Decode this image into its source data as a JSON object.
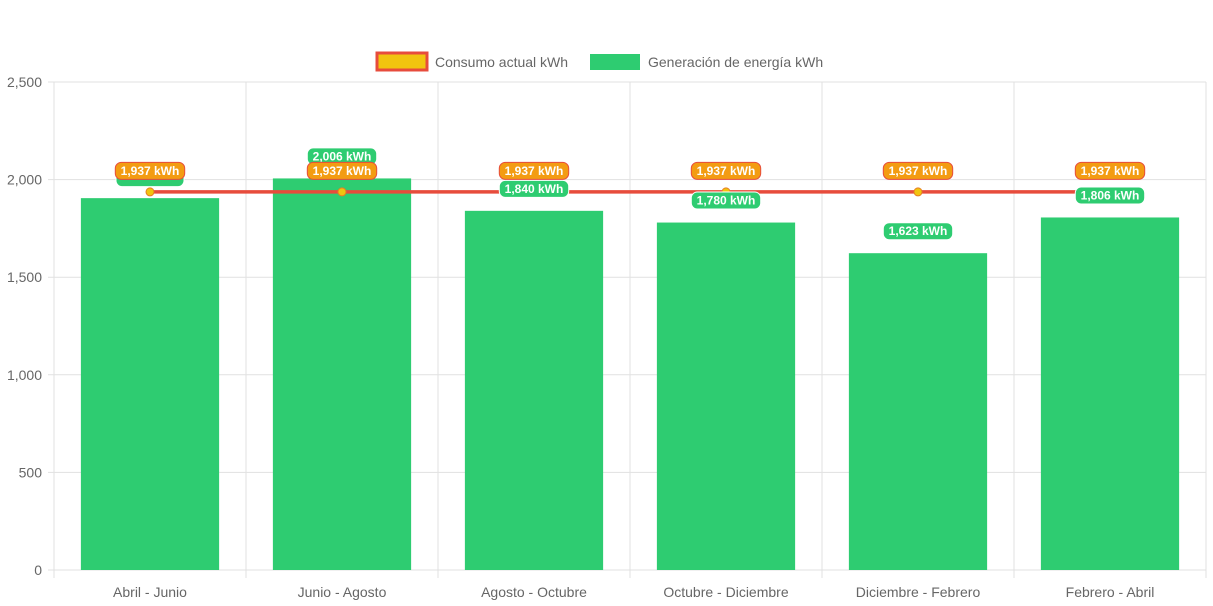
{
  "chart_data": {
    "type": "bar",
    "categories": [
      "Abril - Junio",
      "Junio - Agosto",
      "Agosto - Octubre",
      "Octubre - Diciembre",
      "Diciembre - Febrero",
      "Febrero - Abril"
    ],
    "series": [
      {
        "name": "Consumo actual kWh",
        "type": "line",
        "values": [
          1937,
          1937,
          1937,
          1937,
          1937,
          1937
        ],
        "labels": [
          "1,937 kWh",
          "1,937 kWh",
          "1,937 kWh",
          "1,937 kWh",
          "1,937 kWh",
          "1,937 kWh"
        ],
        "color": "#e74c3c",
        "point_color": "#f1c40f",
        "label_color": "#f39c12"
      },
      {
        "name": "Generación de energía kWh",
        "type": "bar",
        "values": [
          1905,
          2006,
          1840,
          1780,
          1623,
          1806
        ],
        "labels": [
          "",
          "2,006 kWh",
          "1,840 kWh",
          "1,780 kWh",
          "1,623 kWh",
          "1,806 kWh"
        ],
        "color": "#2ecc71"
      }
    ],
    "ylim": [
      0,
      2500
    ],
    "yticks": [
      "0",
      "500",
      "1,000",
      "1,500",
      "2,000",
      "2,500"
    ],
    "ytick_values": [
      0,
      500,
      1000,
      1500,
      2000,
      2500
    ],
    "grid": true,
    "legend_position": "top-center",
    "title": "",
    "xlabel": "",
    "ylabel": ""
  }
}
